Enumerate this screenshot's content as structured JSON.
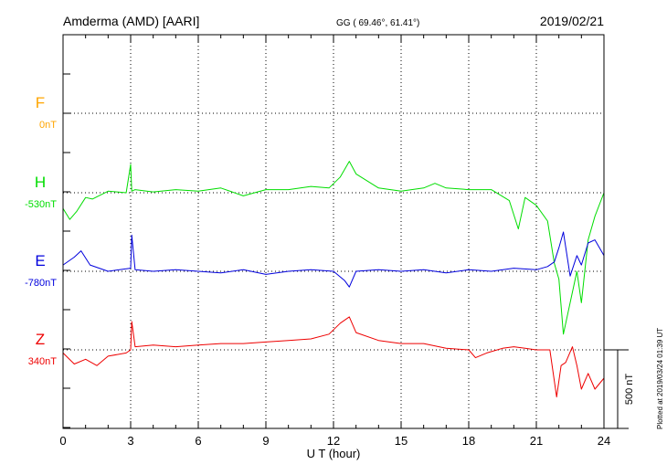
{
  "header": {
    "station": "Amderma (AMD)  [AARI]",
    "coords": "GG ( 69.46°,  61.41°)",
    "date": "2019/02/21"
  },
  "plotted_note": "Plotted at 2019/03/24 01:39 UT",
  "chart_data": {
    "type": "line",
    "title": "Amderma (AMD)  [AARI]",
    "xlabel": "U T (hour)",
    "xlim": [
      0,
      24
    ],
    "x_ticks": [
      "0",
      "3",
      "6",
      "9",
      "12",
      "15",
      "18",
      "21",
      "24"
    ],
    "grid": true,
    "scale_bar": "500 nT",
    "series": [
      {
        "name": "F",
        "baseline": "0nT",
        "color": "#ffa500",
        "x": [],
        "y": []
      },
      {
        "name": "H",
        "baseline": "-530nT",
        "color": "#00dd00",
        "x": [
          0,
          0.3,
          0.6,
          1.0,
          1.3,
          2.0,
          2.8,
          3.0,
          3.05,
          3.2,
          4.0,
          5.0,
          6.0,
          7.0,
          8.0,
          9.0,
          10.0,
          11.0,
          11.8,
          12.3,
          12.7,
          13.0,
          14.0,
          15.0,
          16.0,
          16.5,
          17.0,
          18.0,
          19.0,
          19.8,
          20.2,
          20.5,
          21.0,
          21.5,
          21.8,
          22.0,
          22.2,
          22.5,
          22.8,
          23.0,
          23.3,
          23.6,
          24.0
        ],
        "y": [
          -100,
          -170,
          -120,
          -30,
          -40,
          10,
          0,
          180,
          10,
          20,
          5,
          20,
          10,
          30,
          -20,
          20,
          20,
          40,
          30,
          100,
          200,
          120,
          30,
          10,
          30,
          60,
          30,
          20,
          20,
          -50,
          -230,
          -30,
          -80,
          -180,
          -450,
          -550,
          -900,
          -700,
          -500,
          -700,
          -300,
          -150,
          0
        ]
      },
      {
        "name": "E",
        "baseline": "-780nT",
        "color": "#0000dd",
        "x": [
          0,
          0.5,
          0.8,
          1.2,
          2.0,
          3.0,
          3.05,
          3.2,
          4.0,
          5.0,
          6.0,
          7.0,
          8.0,
          9.0,
          10.0,
          11.0,
          12.0,
          12.5,
          12.7,
          13.0,
          14.0,
          15.0,
          16.0,
          17.0,
          18.0,
          19.0,
          20.0,
          21.0,
          21.5,
          21.8,
          22.0,
          22.2,
          22.5,
          22.8,
          23.0,
          23.3,
          23.6,
          24.0
        ],
        "y": [
          40,
          90,
          130,
          40,
          0,
          20,
          230,
          10,
          0,
          10,
          0,
          -10,
          10,
          -20,
          0,
          10,
          0,
          -60,
          -100,
          0,
          10,
          0,
          10,
          -10,
          10,
          0,
          20,
          10,
          30,
          60,
          150,
          250,
          -30,
          100,
          40,
          180,
          200,
          100
        ]
      },
      {
        "name": "Z",
        "baseline": "340nT",
        "color": "#ee0000",
        "x": [
          0,
          0.5,
          1.0,
          1.5,
          2.0,
          2.8,
          3.0,
          3.05,
          3.2,
          4.0,
          5.0,
          6.0,
          7.0,
          8.0,
          9.0,
          10.0,
          11.0,
          11.8,
          12.3,
          12.7,
          13.0,
          14.0,
          15.0,
          16.0,
          17.0,
          18.0,
          18.3,
          18.8,
          19.5,
          20.0,
          20.5,
          21.0,
          21.6,
          21.9,
          22.1,
          22.3,
          22.6,
          22.8,
          23.0,
          23.3,
          23.6,
          24.0
        ],
        "y": [
          -20,
          -90,
          -60,
          -100,
          -40,
          -20,
          0,
          180,
          20,
          30,
          20,
          30,
          40,
          40,
          50,
          60,
          70,
          100,
          170,
          210,
          110,
          60,
          40,
          40,
          10,
          0,
          -50,
          -20,
          10,
          20,
          10,
          0,
          0,
          -300,
          -100,
          -80,
          20,
          -100,
          -250,
          -150,
          -250,
          -180
        ]
      }
    ]
  }
}
